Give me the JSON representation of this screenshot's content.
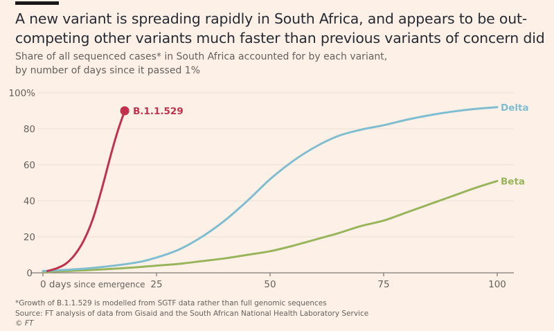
{
  "header": {
    "title": "A new variant is spreading rapidly in South Africa, and appears to be out-competing other variants much faster than previous variants of concern did",
    "subtitle_line1": "Share of all sequenced cases* in South Africa accounted for by each variant,",
    "subtitle_line2": "by number of days since it passed 1%"
  },
  "footer": {
    "note": "*Growth of B.1.1.529 is modelled from SGTF data rather than full genomic sequences",
    "source": "Source: FT analysis of data from Gisaid and the South African National Health Laboratory Service",
    "copyright": "© FT"
  },
  "chart_data": {
    "type": "line",
    "title": "A new variant is spreading rapidly in South Africa, and appears to be out-competing other variants much faster than previous variants of concern did",
    "subtitle": "Share of all sequenced cases* in South Africa accounted for by each variant, by number of days since it passed 1%",
    "xlabel": "days since emergence",
    "ylabel": "",
    "xlim": [
      0,
      100
    ],
    "ylim": [
      0,
      100
    ],
    "x_ticks": [
      0,
      25,
      50,
      75,
      100
    ],
    "x_tick_labels": [
      "0 days",
      "25",
      "50",
      "75",
      "100"
    ],
    "x_tick_suffix": "since emergence",
    "y_ticks": [
      0,
      20,
      40,
      60,
      80,
      100
    ],
    "y_tick_labels": [
      "0",
      "20",
      "40",
      "60",
      "80",
      "100%"
    ],
    "grid": true,
    "legend": "direct-labels-at-line-ends",
    "series": [
      {
        "name": "B.1.1.529",
        "color": "#c1304d",
        "end_marker": true,
        "points": [
          [
            1,
            1
          ],
          [
            3,
            2.5
          ],
          [
            5,
            5
          ],
          [
            7,
            10
          ],
          [
            9,
            18
          ],
          [
            11,
            30
          ],
          [
            13,
            47
          ],
          [
            15,
            66
          ],
          [
            16.5,
            79
          ],
          [
            18,
            90
          ]
        ]
      },
      {
        "name": "Delta",
        "color": "#7fbdd0",
        "end_marker": false,
        "points": [
          [
            0,
            1
          ],
          [
            10,
            2.5
          ],
          [
            20,
            5.5
          ],
          [
            25,
            8.5
          ],
          [
            30,
            13
          ],
          [
            35,
            20
          ],
          [
            40,
            29
          ],
          [
            45,
            40
          ],
          [
            50,
            52
          ],
          [
            55,
            62
          ],
          [
            60,
            70
          ],
          [
            65,
            76
          ],
          [
            70,
            79.5
          ],
          [
            75,
            82
          ],
          [
            80,
            85
          ],
          [
            85,
            87.5
          ],
          [
            90,
            89.5
          ],
          [
            95,
            91
          ],
          [
            100,
            92
          ]
        ]
      },
      {
        "name": "Beta",
        "color": "#98b55b",
        "end_marker": false,
        "points": [
          [
            0,
            0.5
          ],
          [
            10,
            1.5
          ],
          [
            20,
            3
          ],
          [
            25,
            4
          ],
          [
            30,
            5
          ],
          [
            35,
            6.5
          ],
          [
            40,
            8
          ],
          [
            45,
            10
          ],
          [
            50,
            12
          ],
          [
            55,
            15
          ],
          [
            60,
            18.5
          ],
          [
            65,
            22
          ],
          [
            70,
            26
          ],
          [
            75,
            29
          ],
          [
            80,
            33.5
          ],
          [
            85,
            38
          ],
          [
            90,
            42.5
          ],
          [
            95,
            47
          ],
          [
            100,
            51
          ]
        ]
      }
    ]
  }
}
